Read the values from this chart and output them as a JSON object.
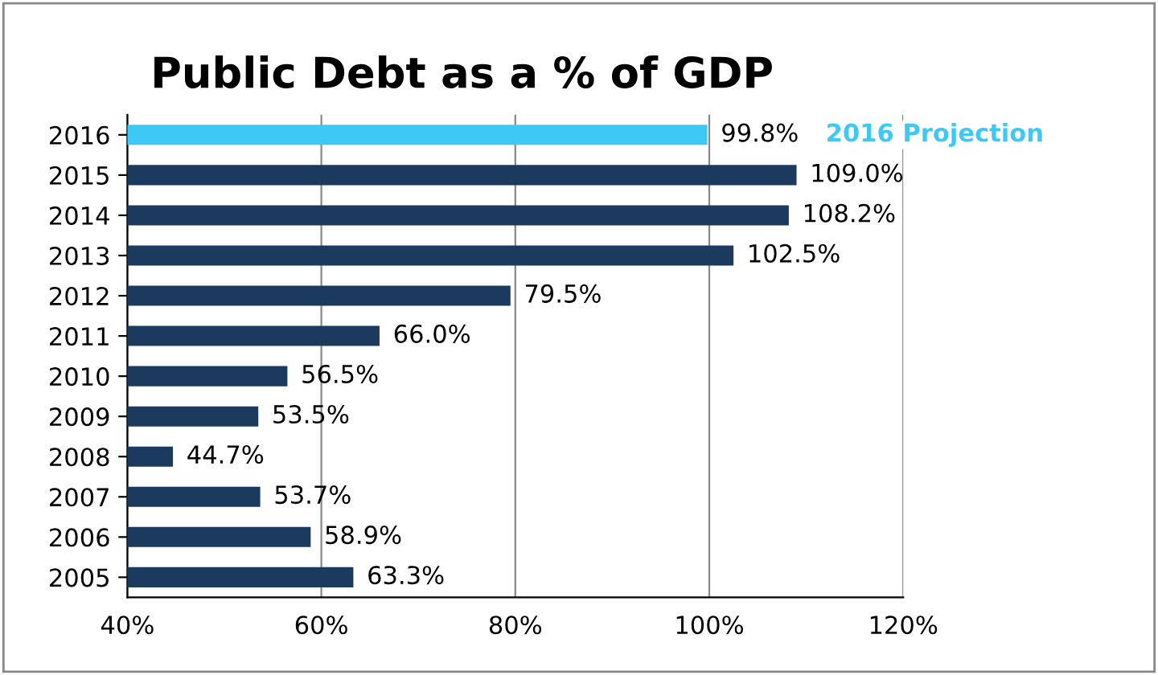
{
  "chart_data": {
    "type": "bar",
    "orientation": "horizontal",
    "title": "Public Debt as a % of GDP",
    "categories": [
      "2016",
      "2015",
      "2014",
      "2013",
      "2012",
      "2011",
      "2010",
      "2009",
      "2008",
      "2007",
      "2006",
      "2005"
    ],
    "values": [
      99.8,
      109.0,
      108.2,
      102.5,
      79.5,
      66.0,
      56.5,
      53.5,
      44.7,
      53.7,
      58.9,
      63.3
    ],
    "colors": [
      "#3ec8f5",
      "#1c3a5e",
      "#1c3a5e",
      "#1c3a5e",
      "#1c3a5e",
      "#1c3a5e",
      "#1c3a5e",
      "#1c3a5e",
      "#1c3a5e",
      "#1c3a5e",
      "#1c3a5e",
      "#1c3a5e"
    ],
    "value_labels": [
      "99.8%",
      "109.0%",
      "108.2%",
      "102.5%",
      "79.5%",
      "66.0%",
      "56.5%",
      "53.5%",
      "44.7%",
      "53.7%",
      "58.9%",
      "63.3%"
    ],
    "xlim": [
      40,
      120
    ],
    "xticks": [
      {
        "value": 40,
        "label": "40%"
      },
      {
        "value": 60,
        "label": "60%"
      },
      {
        "value": 80,
        "label": "80%"
      },
      {
        "value": 100,
        "label": "100%"
      },
      {
        "value": 120,
        "label": "120%"
      }
    ],
    "grid": "x",
    "annotations": [
      "2016 Projection"
    ]
  }
}
